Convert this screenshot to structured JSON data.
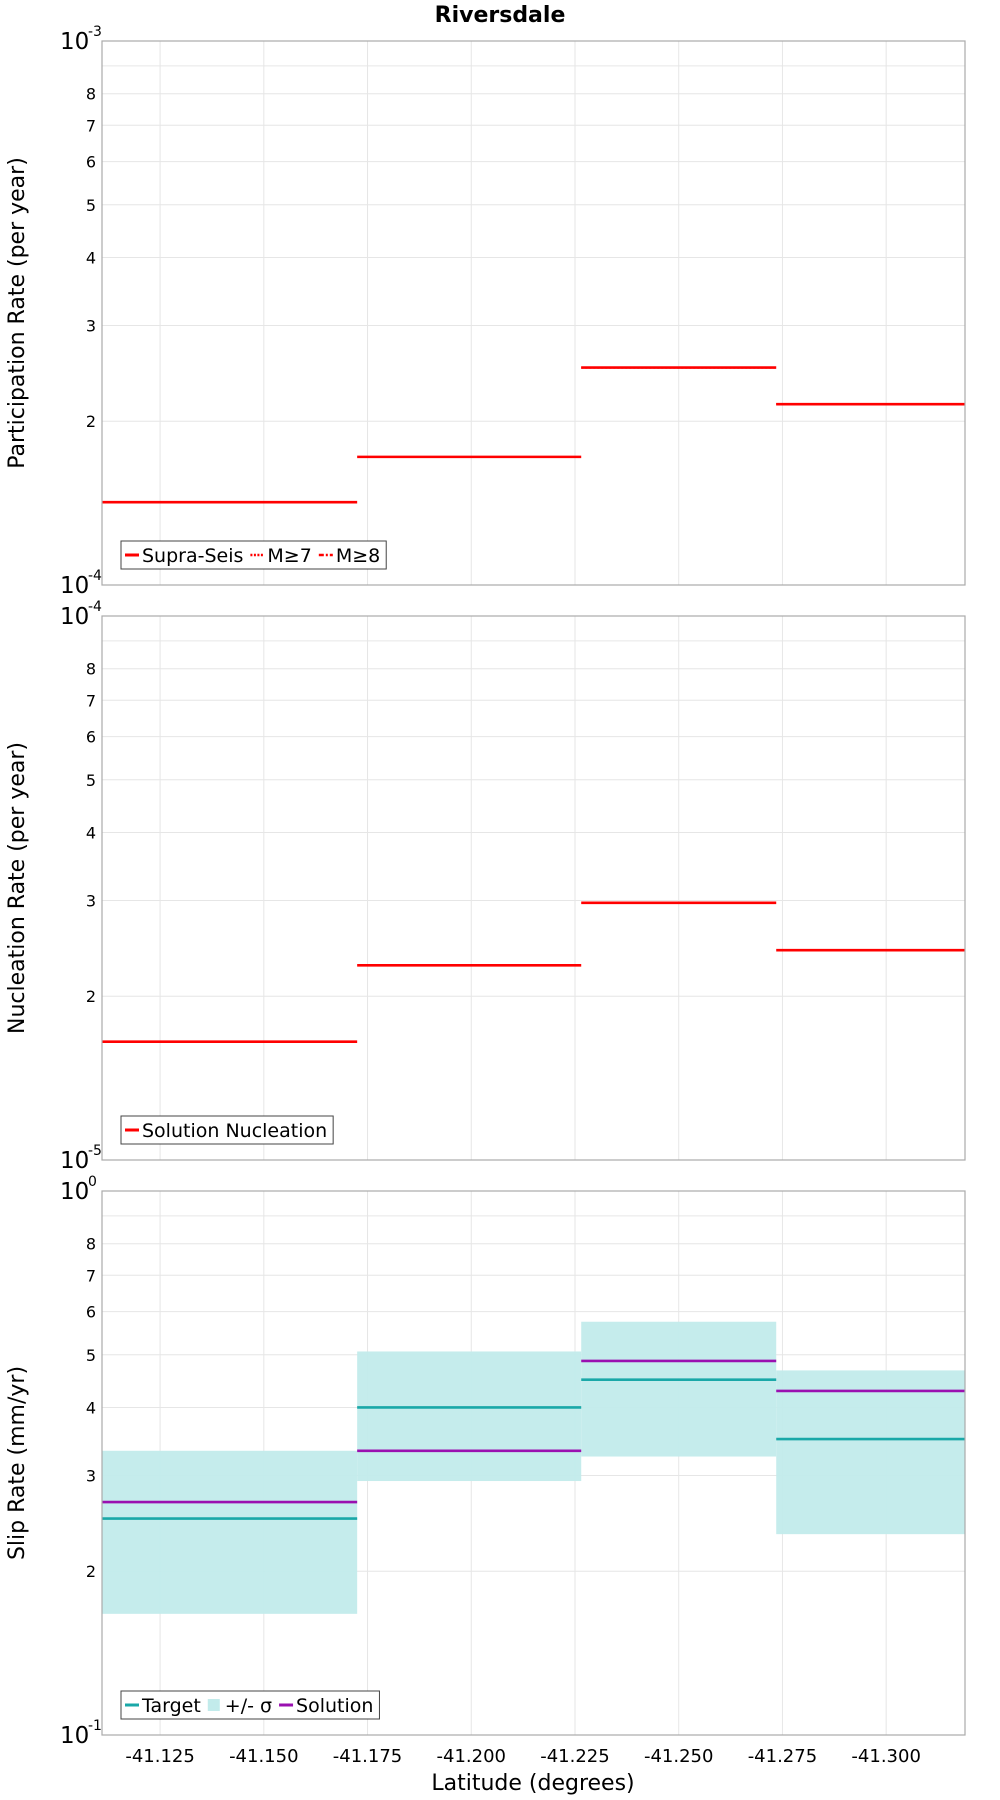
{
  "figure": {
    "title": "Riversdale",
    "xlabel": "Latitude (degrees)"
  },
  "chart_data": [
    {
      "type": "line",
      "id": "participation",
      "ylabel": "Participation Rate (per year)",
      "yscale": "log",
      "ylim": [
        0.0001,
        0.001
      ],
      "y_major_ticks": [
        {
          "base": "10",
          "exp": "-4"
        },
        {
          "base": "10",
          "exp": "-3"
        }
      ],
      "y_minor_ticks": [
        "2",
        "3",
        "4",
        "5",
        "6",
        "7",
        "8"
      ],
      "xlim": [
        -41.111,
        -41.319
      ],
      "x_ticks": [
        "-41.125",
        "-41.150",
        "-41.175",
        "-41.200",
        "-41.225",
        "-41.250",
        "-41.275",
        "-41.300"
      ],
      "grid": true,
      "legend": {
        "placement": "bottom-left",
        "entries": [
          {
            "label": "Supra-Seis",
            "color": "#ff0000",
            "dash": "solid"
          },
          {
            "label": "M≥7",
            "color": "#ff0000",
            "dash": "dotted"
          },
          {
            "label": "M≥8",
            "color": "#ff0000",
            "dash": "dashdot"
          }
        ]
      },
      "series": [
        {
          "name": "Supra-Seis",
          "color": "#ff0000",
          "style": "solid",
          "segments": [
            {
              "x0": -41.111,
              "x1": -41.1725,
              "y": 0.000142
            },
            {
              "x0": -41.1725,
              "x1": -41.2265,
              "y": 0.000172
            },
            {
              "x0": -41.2265,
              "x1": -41.2735,
              "y": 0.000251
            },
            {
              "x0": -41.2735,
              "x1": -41.319,
              "y": 0.000215
            }
          ]
        },
        {
          "name": "M≥7",
          "color": "#ff0000",
          "style": "dotted",
          "segments": [
            {
              "x0": -41.111,
              "x1": -41.1725,
              "y": 0.000142
            },
            {
              "x0": -41.2265,
              "x1": -41.2735,
              "y": 0.000251
            },
            {
              "x0": -41.2735,
              "x1": -41.319,
              "y": 0.000215
            }
          ]
        }
      ]
    },
    {
      "type": "line",
      "id": "nucleation",
      "ylabel": "Nucleation Rate (per year)",
      "yscale": "log",
      "ylim": [
        1e-05,
        0.0001
      ],
      "y_major_ticks": [
        {
          "base": "10",
          "exp": "-5"
        },
        {
          "base": "10",
          "exp": "-4"
        }
      ],
      "y_minor_ticks": [
        "2",
        "3",
        "4",
        "5",
        "6",
        "7",
        "8"
      ],
      "xlim": [
        -41.111,
        -41.319
      ],
      "x_ticks": [
        "-41.125",
        "-41.150",
        "-41.175",
        "-41.200",
        "-41.225",
        "-41.250",
        "-41.275",
        "-41.300"
      ],
      "grid": true,
      "legend": {
        "placement": "bottom-left",
        "entries": [
          {
            "label": "Solution Nucleation",
            "color": "#ff0000",
            "dash": "solid"
          }
        ]
      },
      "series": [
        {
          "name": "Solution Nucleation",
          "color": "#ff0000",
          "style": "solid",
          "segments": [
            {
              "x0": -41.111,
              "x1": -41.1725,
              "y": 1.65e-05
            },
            {
              "x0": -41.1725,
              "x1": -41.2265,
              "y": 2.28e-05
            },
            {
              "x0": -41.2265,
              "x1": -41.2735,
              "y": 2.97e-05
            },
            {
              "x0": -41.2735,
              "x1": -41.319,
              "y": 2.43e-05
            }
          ]
        }
      ]
    },
    {
      "type": "area",
      "id": "slip",
      "ylabel": "Slip Rate (mm/yr)",
      "yscale": "log",
      "ylim": [
        0.1,
        1.0
      ],
      "y_major_ticks": [
        {
          "base": "10",
          "exp": "-1"
        },
        {
          "base": "10",
          "exp": "0"
        }
      ],
      "y_minor_ticks": [
        "2",
        "3",
        "4",
        "5",
        "6",
        "7",
        "8"
      ],
      "xlim": [
        -41.111,
        -41.319
      ],
      "x_ticks": [
        "-41.125",
        "-41.150",
        "-41.175",
        "-41.200",
        "-41.225",
        "-41.250",
        "-41.275",
        "-41.300"
      ],
      "grid": true,
      "legend": {
        "placement": "bottom-left",
        "entries": [
          {
            "label": "Target",
            "color": "#1aa8a8",
            "kind": "line"
          },
          {
            "label": "+/- σ",
            "color": "#c2ebeb",
            "kind": "fill"
          },
          {
            "label": "Solution",
            "color": "#9a10b0",
            "kind": "line"
          }
        ]
      },
      "bands": [
        {
          "name": "+/- σ",
          "color": "#c2ebeb",
          "segments": [
            {
              "x0": -41.111,
              "x1": -41.1725,
              "low": 0.167,
              "high": 0.333
            },
            {
              "x0": -41.1725,
              "x1": -41.2265,
              "low": 0.293,
              "high": 0.507
            },
            {
              "x0": -41.2265,
              "x1": -41.2735,
              "low": 0.325,
              "high": 0.575
            },
            {
              "x0": -41.2735,
              "x1": -41.319,
              "low": 0.234,
              "high": 0.468
            }
          ]
        }
      ],
      "series": [
        {
          "name": "Target",
          "color": "#1aa8a8",
          "style": "solid",
          "segments": [
            {
              "x0": -41.111,
              "x1": -41.1725,
              "y": 0.25
            },
            {
              "x0": -41.1725,
              "x1": -41.2265,
              "y": 0.4
            },
            {
              "x0": -41.2265,
              "x1": -41.2735,
              "y": 0.45
            },
            {
              "x0": -41.2735,
              "x1": -41.319,
              "y": 0.35
            }
          ]
        },
        {
          "name": "Solution",
          "color": "#9a10b0",
          "style": "solid",
          "segments": [
            {
              "x0": -41.111,
              "x1": -41.1725,
              "y": 0.268
            },
            {
              "x0": -41.1725,
              "x1": -41.2265,
              "y": 0.333
            },
            {
              "x0": -41.2265,
              "x1": -41.2735,
              "y": 0.487
            },
            {
              "x0": -41.2735,
              "x1": -41.319,
              "y": 0.429
            }
          ]
        }
      ]
    }
  ]
}
